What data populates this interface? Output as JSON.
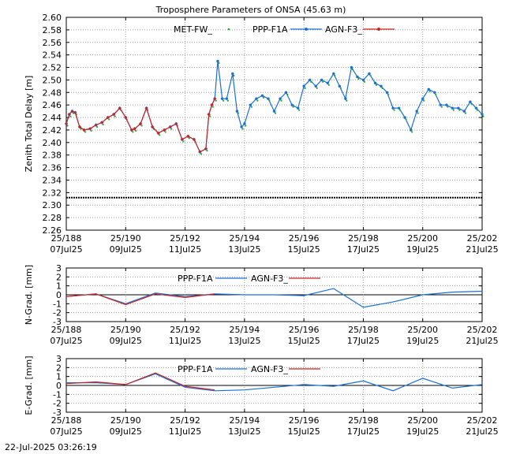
{
  "title": "Troposphere Parameters of ONSA (45.63 m)",
  "timestamp": "22-Jul-2025 03:26:19",
  "colors": {
    "met": "#22aa22",
    "ppp": "#1a6fd6",
    "agn": "#cc2222",
    "grid": "#9a9a9a"
  },
  "chart_data": [
    {
      "type": "line",
      "ylabel": "Zenith Total Delay [m]",
      "ylim": [
        2.26,
        2.6
      ],
      "yticks": [
        "2.26",
        "2.28",
        "2.30",
        "2.32",
        "2.34",
        "2.36",
        "2.38",
        "2.40",
        "2.42",
        "2.44",
        "2.46",
        "2.48",
        "2.50",
        "2.52",
        "2.54",
        "2.56",
        "2.58",
        "2.60"
      ],
      "xlim": [
        188,
        202
      ],
      "xticks": [
        {
          "x": 188,
          "top": "25/188",
          "bottom": "07Jul25"
        },
        {
          "x": 190,
          "top": "25/190",
          "bottom": "09Jul25"
        },
        {
          "x": 192,
          "top": "25/192",
          "bottom": "11Jul25"
        },
        {
          "x": 194,
          "top": "25/194",
          "bottom": "13Jul25"
        },
        {
          "x": 196,
          "top": "25/196",
          "bottom": "15Jul25"
        },
        {
          "x": 198,
          "top": "25/198",
          "bottom": "17Jul25"
        },
        {
          "x": 200,
          "top": "25/200",
          "bottom": "19Jul25"
        },
        {
          "x": 202,
          "top": "25/202",
          "bottom": "21Jul25"
        }
      ],
      "grid": true,
      "legend": "top-center",
      "series": [
        {
          "name": "MET-FW_",
          "style": "dots",
          "y_const": 2.312
        },
        {
          "name": "PPP-F1A",
          "style": "line-dots",
          "x": [
            188.0,
            188.1,
            188.2,
            188.3,
            188.45,
            188.6,
            188.8,
            189.0,
            189.2,
            189.4,
            189.6,
            189.8,
            190.0,
            190.2,
            190.3,
            190.5,
            190.7,
            190.9,
            191.1,
            191.3,
            191.5,
            191.7,
            191.9,
            192.1,
            192.3,
            192.5,
            192.7,
            192.8,
            192.9,
            193.0,
            193.1,
            193.25,
            193.4,
            193.6,
            193.75,
            193.9,
            194.0,
            194.2,
            194.4,
            194.6,
            194.8,
            195.0,
            195.2,
            195.4,
            195.6,
            195.8,
            196.0,
            196.2,
            196.4,
            196.6,
            196.8,
            197.0,
            197.2,
            197.4,
            197.6,
            197.8,
            198.0,
            198.2,
            198.4,
            198.6,
            198.8,
            199.0,
            199.2,
            199.4,
            199.6,
            199.8,
            200.0,
            200.2,
            200.4,
            200.6,
            200.8,
            201.0,
            201.2,
            201.4,
            201.6,
            201.8,
            202.0
          ],
          "y": [
            2.43,
            2.445,
            2.45,
            2.448,
            2.425,
            2.42,
            2.422,
            2.428,
            2.432,
            2.44,
            2.445,
            2.455,
            2.44,
            2.42,
            2.422,
            2.43,
            2.455,
            2.425,
            2.415,
            2.42,
            2.425,
            2.43,
            2.405,
            2.41,
            2.405,
            2.385,
            2.39,
            2.445,
            2.46,
            2.47,
            2.53,
            2.47,
            2.47,
            2.51,
            2.45,
            2.425,
            2.43,
            2.46,
            2.47,
            2.475,
            2.47,
            2.45,
            2.47,
            2.48,
            2.46,
            2.455,
            2.49,
            2.5,
            2.49,
            2.5,
            2.495,
            2.51,
            2.49,
            2.47,
            2.52,
            2.505,
            2.5,
            2.51,
            2.495,
            2.49,
            2.48,
            2.455,
            2.455,
            2.44,
            2.42,
            2.45,
            2.47,
            2.485,
            2.48,
            2.46,
            2.46,
            2.455,
            2.455,
            2.45,
            2.465,
            2.455,
            2.445
          ]
        },
        {
          "name": "AGN-F3_",
          "style": "line-cross",
          "x": [
            188.0,
            188.1,
            188.2,
            188.3,
            188.45,
            188.6,
            188.8,
            189.0,
            189.2,
            189.4,
            189.6,
            189.8,
            190.0,
            190.2,
            190.3,
            190.5,
            190.7,
            190.9,
            191.1,
            191.3,
            191.5,
            191.7,
            191.9,
            192.1,
            192.3,
            192.5,
            192.7,
            192.8,
            192.9,
            193.0
          ],
          "y": [
            2.43,
            2.445,
            2.45,
            2.448,
            2.425,
            2.42,
            2.422,
            2.428,
            2.432,
            2.44,
            2.445,
            2.455,
            2.44,
            2.42,
            2.422,
            2.43,
            2.455,
            2.425,
            2.415,
            2.42,
            2.425,
            2.43,
            2.405,
            2.41,
            2.405,
            2.385,
            2.39,
            2.445,
            2.46,
            2.47
          ]
        }
      ]
    },
    {
      "type": "line",
      "ylabel": "N-Grad. [mm]",
      "ylim": [
        -3,
        3
      ],
      "yticks": [
        "-3",
        "-2",
        "-1",
        "0",
        "1",
        "2",
        "3"
      ],
      "xlim": [
        188,
        202
      ],
      "xticks": [
        {
          "x": 188,
          "top": "25/188",
          "bottom": "07Jul25"
        },
        {
          "x": 190,
          "top": "25/190",
          "bottom": "09Jul25"
        },
        {
          "x": 192,
          "top": "25/192",
          "bottom": "11Jul25"
        },
        {
          "x": 194,
          "top": "25/194",
          "bottom": "13Jul25"
        },
        {
          "x": 196,
          "top": "25/196",
          "bottom": "15Jul25"
        },
        {
          "x": 198,
          "top": "25/198",
          "bottom": "17Jul25"
        },
        {
          "x": 200,
          "top": "25/200",
          "bottom": "19Jul25"
        },
        {
          "x": 202,
          "top": "25/202",
          "bottom": "21Jul25"
        }
      ],
      "grid": true,
      "legend": "top-center",
      "series": [
        {
          "name": "PPP-F1A",
          "x": [
            188,
            189,
            190,
            191,
            192,
            193,
            194,
            195,
            196,
            197,
            198,
            199,
            200,
            201,
            202
          ],
          "y": [
            -0.2,
            0.1,
            -1.0,
            0.2,
            -0.2,
            0.1,
            0.0,
            0.0,
            -0.1,
            0.7,
            -1.4,
            -0.8,
            0.0,
            0.3,
            0.4
          ]
        },
        {
          "name": "AGN-F3_",
          "x": [
            188,
            189,
            190,
            191,
            192,
            193
          ],
          "y": [
            -0.2,
            0.1,
            -1.1,
            0.1,
            -0.3,
            0.1
          ]
        }
      ]
    },
    {
      "type": "line",
      "ylabel": "E-Grad. [mm]",
      "ylim": [
        -3,
        3
      ],
      "yticks": [
        "-3",
        "-2",
        "-1",
        "0",
        "1",
        "2",
        "3"
      ],
      "xlim": [
        188,
        202
      ],
      "xticks": [
        {
          "x": 188,
          "top": "25/188",
          "bottom": "07Jul25"
        },
        {
          "x": 190,
          "top": "25/190",
          "bottom": "09Jul25"
        },
        {
          "x": 192,
          "top": "25/192",
          "bottom": "11Jul25"
        },
        {
          "x": 194,
          "top": "25/194",
          "bottom": "13Jul25"
        },
        {
          "x": 196,
          "top": "25/196",
          "bottom": "15Jul25"
        },
        {
          "x": 198,
          "top": "25/198",
          "bottom": "17Jul25"
        },
        {
          "x": 200,
          "top": "25/200",
          "bottom": "19Jul25"
        },
        {
          "x": 202,
          "top": "25/202",
          "bottom": "21Jul25"
        }
      ],
      "grid": true,
      "legend": "top-center",
      "series": [
        {
          "name": "PPP-F1A",
          "x": [
            188,
            189,
            190,
            191,
            192,
            193,
            194,
            195,
            196,
            197,
            198,
            199,
            200,
            201,
            202
          ],
          "y": [
            0.3,
            0.3,
            0.1,
            1.3,
            -0.2,
            -0.6,
            -0.5,
            -0.2,
            0.1,
            -0.1,
            0.5,
            -0.6,
            0.8,
            -0.3,
            0.1
          ]
        },
        {
          "name": "AGN-F3_",
          "x": [
            188,
            189,
            190,
            191,
            192,
            193
          ],
          "y": [
            0.2,
            0.4,
            0.1,
            1.4,
            -0.1,
            -0.5
          ]
        }
      ]
    }
  ]
}
